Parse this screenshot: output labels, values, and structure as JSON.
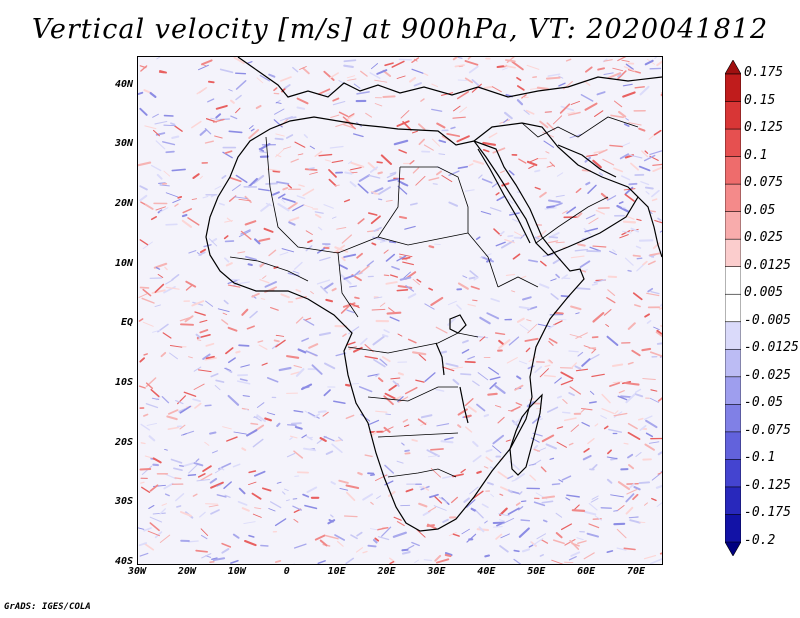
{
  "title": "Vertical velocity [m/s] at 900hPa, VT: 2020041812",
  "credit": "GrADS: IGES/COLA",
  "map": {
    "lat_labels": [
      "40N",
      "30N",
      "20N",
      "10N",
      "EQ",
      "10S",
      "20S",
      "30S",
      "40S"
    ],
    "lon_labels": [
      "30W",
      "20W",
      "10W",
      "0",
      "10E",
      "20E",
      "30E",
      "40E",
      "50E",
      "60E",
      "70E"
    ],
    "lat_range": [
      -40,
      45
    ],
    "lon_range": [
      -30,
      75
    ],
    "coastline_color": "#000000",
    "field_background": "#f4f3fb"
  },
  "colorbar": {
    "levels": [
      "0.175",
      "0.15",
      "0.125",
      "0.1",
      "0.075",
      "0.05",
      "0.025",
      "0.0125",
      "0.005",
      "-0.005",
      "-0.0125",
      "-0.025",
      "-0.05",
      "-0.075",
      "-0.1",
      "-0.125",
      "-0.175",
      "-0.2"
    ],
    "colors": [
      "#a01010",
      "#c01c1c",
      "#d83636",
      "#e65050",
      "#ee6c6c",
      "#f48a8a",
      "#f8acac",
      "#fbcdcd",
      "#ffffff",
      "#ffffff",
      "#dadafa",
      "#bcbcf4",
      "#9e9eee",
      "#8080e6",
      "#6262dc",
      "#4444d0",
      "#2828bc",
      "#1212a6",
      "#000080"
    ]
  }
}
